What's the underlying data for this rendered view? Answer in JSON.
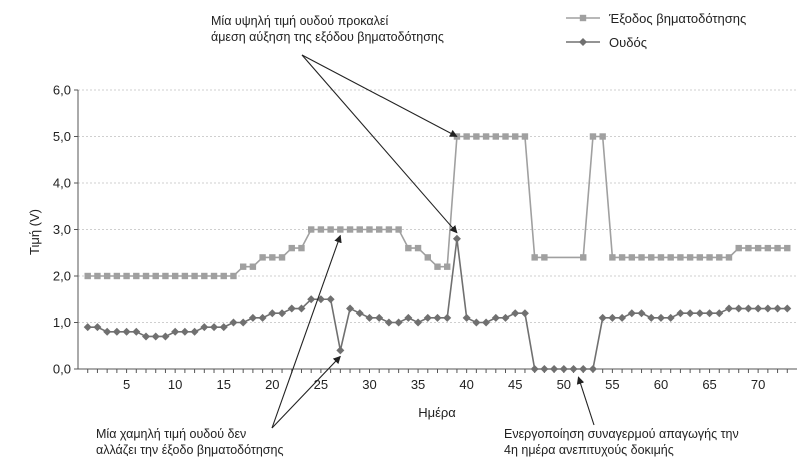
{
  "chart_data": {
    "type": "line",
    "xlabel": "Ημέρα",
    "ylabel": "Τιμή (V)",
    "ylim": [
      0,
      6.0
    ],
    "xlim": [
      0,
      74
    ],
    "yticks": [
      "0,0",
      "1,0",
      "2,0",
      "3,0",
      "4,0",
      "5,0",
      "6,0"
    ],
    "xticks": [
      "5",
      "10",
      "15",
      "20",
      "25",
      "30",
      "35",
      "40",
      "45",
      "50",
      "55",
      "60",
      "65",
      "70"
    ],
    "grid": "horizontal",
    "legend_position": "top-right",
    "series": [
      {
        "name": "Έξοδος βηματοδότησης",
        "color": "#a0a0a0",
        "marker": "square",
        "x": [
          1,
          2,
          3,
          4,
          5,
          6,
          7,
          8,
          9,
          10,
          11,
          12,
          13,
          14,
          15,
          16,
          17,
          18,
          19,
          20,
          21,
          22,
          23,
          24,
          25,
          26,
          27,
          28,
          29,
          30,
          31,
          32,
          33,
          34,
          35,
          36,
          37,
          38,
          39,
          40,
          41,
          42,
          43,
          44,
          45,
          46,
          47,
          48,
          52,
          53,
          54,
          55,
          56,
          57,
          58,
          59,
          60,
          61,
          62,
          63,
          64,
          65,
          66,
          67,
          68,
          69,
          70,
          71,
          72,
          73
        ],
        "values": [
          2.0,
          2.0,
          2.0,
          2.0,
          2.0,
          2.0,
          2.0,
          2.0,
          2.0,
          2.0,
          2.0,
          2.0,
          2.0,
          2.0,
          2.0,
          2.0,
          2.2,
          2.2,
          2.4,
          2.4,
          2.4,
          2.6,
          2.6,
          3.0,
          3.0,
          3.0,
          3.0,
          3.0,
          3.0,
          3.0,
          3.0,
          3.0,
          3.0,
          2.6,
          2.6,
          2.4,
          2.2,
          2.2,
          5.0,
          5.0,
          5.0,
          5.0,
          5.0,
          5.0,
          5.0,
          5.0,
          2.4,
          2.4,
          2.4,
          5.0,
          5.0,
          2.4,
          2.4,
          2.4,
          2.4,
          2.4,
          2.4,
          2.4,
          2.4,
          2.4,
          2.4,
          2.4,
          2.4,
          2.4,
          2.6,
          2.6,
          2.6,
          2.6,
          2.6,
          2.6
        ]
      },
      {
        "name": "Ουδός",
        "color": "#707070",
        "marker": "diamond",
        "x": [
          1,
          2,
          3,
          4,
          5,
          6,
          7,
          8,
          9,
          10,
          11,
          12,
          13,
          14,
          15,
          16,
          17,
          18,
          19,
          20,
          21,
          22,
          23,
          24,
          25,
          26,
          27,
          28,
          29,
          30,
          31,
          32,
          33,
          34,
          35,
          36,
          37,
          38,
          39,
          40,
          41,
          42,
          43,
          44,
          45,
          46,
          47,
          48,
          49,
          50,
          51,
          52,
          53,
          54,
          55,
          56,
          57,
          58,
          59,
          60,
          61,
          62,
          63,
          64,
          65,
          66,
          67,
          68,
          69,
          70,
          71,
          72,
          73
        ],
        "values": [
          0.9,
          0.9,
          0.8,
          0.8,
          0.8,
          0.8,
          0.7,
          0.7,
          0.7,
          0.8,
          0.8,
          0.8,
          0.9,
          0.9,
          0.9,
          1.0,
          1.0,
          1.1,
          1.1,
          1.2,
          1.2,
          1.3,
          1.3,
          1.5,
          1.5,
          1.5,
          0.4,
          1.3,
          1.2,
          1.1,
          1.1,
          1.0,
          1.0,
          1.1,
          1.0,
          1.1,
          1.1,
          1.1,
          2.8,
          1.1,
          1.0,
          1.0,
          1.1,
          1.1,
          1.2,
          1.2,
          0.0,
          0.0,
          0.0,
          0.0,
          0.0,
          0.0,
          0.0,
          1.1,
          1.1,
          1.1,
          1.2,
          1.2,
          1.1,
          1.1,
          1.1,
          1.2,
          1.2,
          1.2,
          1.2,
          1.2,
          1.3,
          1.3,
          1.3,
          1.3,
          1.3,
          1.3,
          1.3
        ]
      }
    ],
    "annotations": [
      {
        "lines": [
          "Μία υψηλή τιμή ουδού προκαλεί",
          "άμεση αύξηση της εξόδου βηματοδότησης"
        ],
        "targets": [
          [
            39,
            5.0
          ],
          [
            39,
            2.8
          ]
        ]
      },
      {
        "lines": [
          "Μία χαμηλή τιμή ουδού δεν",
          "αλλάζει την έξοδο βηματοδότησης"
        ],
        "targets": [
          [
            27,
            0.4
          ],
          [
            27,
            3.0
          ]
        ]
      },
      {
        "lines": [
          "Ενεργοποίηση συναγερμού απαγωγής την",
          "4η ημέρα ανεπιτυχούς δοκιμής"
        ],
        "targets": [
          [
            51.5,
            0.0
          ]
        ]
      }
    ]
  }
}
